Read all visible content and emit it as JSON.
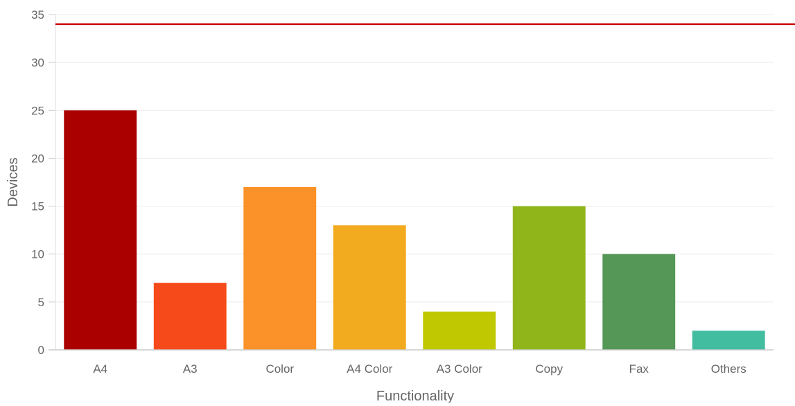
{
  "chart_data": {
    "type": "bar",
    "title": "",
    "xlabel": "Functionality",
    "ylabel": "Devices",
    "categories": [
      "A4",
      "A3",
      "Color",
      "A4 Color",
      "A3 Color",
      "Copy",
      "Fax",
      "Others"
    ],
    "values": [
      25,
      7,
      17,
      13,
      4,
      15,
      10,
      2
    ],
    "bar_colors": [
      "#aa0000",
      "#f64a1a",
      "#fb9229",
      "#f2aa1e",
      "#bfc800",
      "#90b51a",
      "#559757",
      "#43bd9f"
    ],
    "ylim": [
      0,
      35
    ],
    "yticks": [
      0,
      5,
      10,
      15,
      20,
      25,
      30,
      35
    ],
    "reference_line": {
      "value": 34,
      "color": "#cc0000"
    },
    "grid": true,
    "legend": "none"
  }
}
